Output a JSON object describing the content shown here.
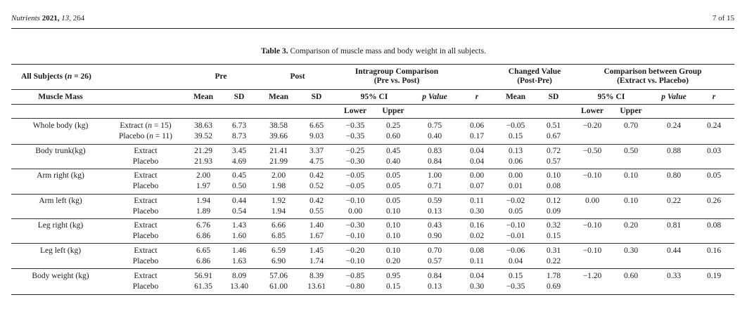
{
  "header": {
    "journal": "Nutrients",
    "year": "2021,",
    "volume": "13,",
    "article": "264",
    "page": "7 of 15"
  },
  "caption": {
    "label": "Table 3.",
    "text": "Comparison of muscle mass and body weight in all subjects."
  },
  "table": {
    "group_headers": {
      "all_subjects": "All Subjects (n = 26)",
      "pre": "Pre",
      "post": "Post",
      "intragroup_line1": "Intragroup Comparison",
      "intragroup_line2": "(Pre vs. Post)",
      "changed_line1": "Changed Value",
      "changed_line2": "(Post-Pre)",
      "between_line1": "Comparison between Group",
      "between_line2": "(Extract vs. Placebo)"
    },
    "col_headers": {
      "muscle_mass": "Muscle Mass",
      "pre_mean": "Mean",
      "pre_sd": "SD",
      "post_mean": "Mean",
      "post_sd": "SD",
      "intra_ci": "95% CI",
      "intra_p": "p Value",
      "intra_r": "r",
      "chg_mean": "Mean",
      "chg_sd": "SD",
      "btw_ci": "95% CI",
      "btw_p": "p Value",
      "btw_r": "r"
    },
    "sub_headers": {
      "intra_lower": "Lower",
      "intra_upper": "Upper",
      "btw_lower": "Lower",
      "btw_upper": "Upper"
    },
    "rows": [
      {
        "measure": "Whole body (kg)",
        "extract": {
          "group": "Extract (n = 15)",
          "pre_mean": "38.63",
          "pre_sd": "6.73",
          "post_mean": "38.58",
          "post_sd": "6.65",
          "lower": "−0.35",
          "upper": "0.25",
          "p": "0.75",
          "r": "0.06",
          "chg_mean": "−0.05",
          "chg_sd": "0.51"
        },
        "placebo": {
          "group": "Placebo (n = 11)",
          "pre_mean": "39.52",
          "pre_sd": "8.73",
          "post_mean": "39.66",
          "post_sd": "9.03",
          "lower": "−0.35",
          "upper": "0.60",
          "p": "0.40",
          "r": "0.17",
          "chg_mean": "0.15",
          "chg_sd": "0.67"
        },
        "between": {
          "lower": "−0.20",
          "upper": "0.70",
          "p": "0.24",
          "r": "0.24"
        }
      },
      {
        "measure": "Body trunk(kg)",
        "extract": {
          "group": "Extract",
          "pre_mean": "21.29",
          "pre_sd": "3.45",
          "post_mean": "21.41",
          "post_sd": "3.37",
          "lower": "−0.25",
          "upper": "0.45",
          "p": "0.83",
          "r": "0.04",
          "chg_mean": "0.13",
          "chg_sd": "0.72"
        },
        "placebo": {
          "group": "Placebo",
          "pre_mean": "21.93",
          "pre_sd": "4.69",
          "post_mean": "21.99",
          "post_sd": "4.75",
          "lower": "−0.30",
          "upper": "0.40",
          "p": "0.84",
          "r": "0.04",
          "chg_mean": "0.06",
          "chg_sd": "0.57"
        },
        "between": {
          "lower": "−0.50",
          "upper": "0.50",
          "p": "0.88",
          "r": "0.03"
        }
      },
      {
        "measure": "Arm right (kg)",
        "extract": {
          "group": "Extract",
          "pre_mean": "2.00",
          "pre_sd": "0.45",
          "post_mean": "2.00",
          "post_sd": "0.42",
          "lower": "−0.05",
          "upper": "0.05",
          "p": "1.00",
          "r": "0.00",
          "chg_mean": "0.00",
          "chg_sd": "0.10"
        },
        "placebo": {
          "group": "Placebo",
          "pre_mean": "1.97",
          "pre_sd": "0.50",
          "post_mean": "1.98",
          "post_sd": "0.52",
          "lower": "−0.05",
          "upper": "0.05",
          "p": "0.71",
          "r": "0.07",
          "chg_mean": "0.01",
          "chg_sd": "0.08"
        },
        "between": {
          "lower": "−0.10",
          "upper": "0.10",
          "p": "0.80",
          "r": "0.05"
        }
      },
      {
        "measure": "Arm left (kg)",
        "extract": {
          "group": "Extract",
          "pre_mean": "1.94",
          "pre_sd": "0.44",
          "post_mean": "1.92",
          "post_sd": "0.42",
          "lower": "−0.10",
          "upper": "0.05",
          "p": "0.59",
          "r": "0.11",
          "chg_mean": "−0.02",
          "chg_sd": "0.12"
        },
        "placebo": {
          "group": "Placebo",
          "pre_mean": "1.89",
          "pre_sd": "0.54",
          "post_mean": "1.94",
          "post_sd": "0.55",
          "lower": "0.00",
          "upper": "0.10",
          "p": "0.13",
          "r": "0.30",
          "chg_mean": "0.05",
          "chg_sd": "0.09"
        },
        "between": {
          "lower": "0.00",
          "upper": "0.10",
          "p": "0.22",
          "r": "0.26"
        }
      },
      {
        "measure": "Leg right (kg)",
        "extract": {
          "group": "Extract",
          "pre_mean": "6.76",
          "pre_sd": "1.43",
          "post_mean": "6.66",
          "post_sd": "1.40",
          "lower": "−0.30",
          "upper": "0.10",
          "p": "0.43",
          "r": "0.16",
          "chg_mean": "−0.10",
          "chg_sd": "0.32"
        },
        "placebo": {
          "group": "Placebo",
          "pre_mean": "6.86",
          "pre_sd": "1.60",
          "post_mean": "6.85",
          "post_sd": "1.67",
          "lower": "−0.10",
          "upper": "0.10",
          "p": "0.90",
          "r": "0.02",
          "chg_mean": "−0.01",
          "chg_sd": "0.15"
        },
        "between": {
          "lower": "−0.10",
          "upper": "0.20",
          "p": "0.81",
          "r": "0.08"
        }
      },
      {
        "measure": "Leg left (kg)",
        "extract": {
          "group": "Extract",
          "pre_mean": "6.65",
          "pre_sd": "1.46",
          "post_mean": "6.59",
          "post_sd": "1.45",
          "lower": "−0.20",
          "upper": "0.10",
          "p": "0.70",
          "r": "0.08",
          "chg_mean": "−0.06",
          "chg_sd": "0.31"
        },
        "placebo": {
          "group": "Placebo",
          "pre_mean": "6.86",
          "pre_sd": "1.63",
          "post_mean": "6.90",
          "post_sd": "1.74",
          "lower": "−0.10",
          "upper": "0.20",
          "p": "0.57",
          "r": "0.11",
          "chg_mean": "0.04",
          "chg_sd": "0.22"
        },
        "between": {
          "lower": "−0.10",
          "upper": "0.30",
          "p": "0.44",
          "r": "0.16"
        }
      },
      {
        "measure": "Body weight (kg)",
        "extract": {
          "group": "Extract",
          "pre_mean": "56.91",
          "pre_sd": "8.09",
          "post_mean": "57.06",
          "post_sd": "8.39",
          "lower": "−0.85",
          "upper": "0.95",
          "p": "0.84",
          "r": "0.04",
          "chg_mean": "0.15",
          "chg_sd": "1.78"
        },
        "placebo": {
          "group": "Placebo",
          "pre_mean": "61.35",
          "pre_sd": "13.40",
          "post_mean": "61.00",
          "post_sd": "13.61",
          "lower": "−0.80",
          "upper": "0.15",
          "p": "0.13",
          "r": "0.30",
          "chg_mean": "−0.35",
          "chg_sd": "0.69"
        },
        "between": {
          "lower": "−1.20",
          "upper": "0.60",
          "p": "0.33",
          "r": "0.19"
        }
      }
    ]
  }
}
